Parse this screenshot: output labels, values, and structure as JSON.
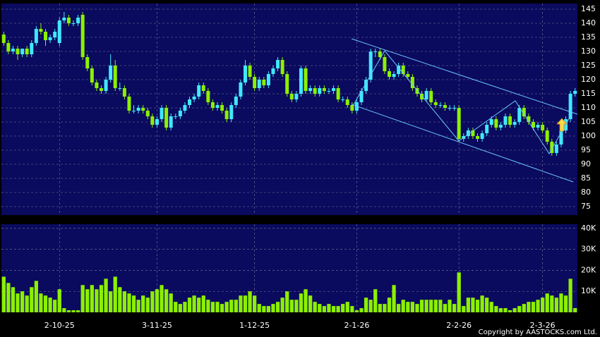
{
  "chart_data": [
    {
      "type": "candlestick",
      "up_color": "#40e8ff",
      "down_color": "#8cf000",
      "ylim": [
        72,
        147
      ],
      "yticks": [
        75,
        80,
        85,
        90,
        95,
        100,
        105,
        110,
        115,
        120,
        125,
        130,
        135,
        140,
        145
      ],
      "grid": true,
      "ohlc": [
        [
          136,
          137,
          132,
          133
        ],
        [
          133,
          134,
          129,
          130
        ],
        [
          130,
          132,
          129,
          131
        ],
        [
          131,
          132,
          127,
          129
        ],
        [
          129,
          131,
          128,
          131
        ],
        [
          131,
          132,
          128,
          129
        ],
        [
          129,
          134,
          128,
          133
        ],
        [
          133,
          139,
          132,
          138
        ],
        [
          138,
          140,
          136,
          137
        ],
        [
          137,
          138,
          132,
          134
        ],
        [
          134,
          136,
          133,
          135
        ],
        [
          135,
          138,
          134,
          137
        ],
        [
          133,
          142,
          132,
          141
        ],
        [
          141,
          144,
          140,
          142
        ],
        [
          142,
          143,
          139,
          140
        ],
        [
          140,
          141,
          139,
          140
        ],
        [
          140,
          143,
          139,
          142
        ],
        [
          143,
          144,
          127,
          128
        ],
        [
          128,
          129,
          123,
          124
        ],
        [
          124,
          125,
          118,
          119
        ],
        [
          119,
          120,
          116,
          117
        ],
        [
          117,
          118,
          115,
          116
        ],
        [
          116,
          121,
          115,
          120
        ],
        [
          120,
          129,
          119,
          125
        ],
        [
          125,
          127,
          116,
          117
        ],
        [
          117,
          119,
          116,
          117
        ],
        [
          117,
          118,
          113,
          114
        ],
        [
          114,
          115,
          108,
          109
        ],
        [
          109,
          111,
          108,
          109
        ],
        [
          109,
          111,
          108,
          110
        ],
        [
          110,
          111,
          108,
          109
        ],
        [
          109,
          110,
          106,
          107
        ],
        [
          107,
          108,
          103,
          104
        ],
        [
          104,
          107,
          103,
          106
        ],
        [
          106,
          111,
          105,
          110
        ],
        [
          110,
          111,
          102,
          103
        ],
        [
          103,
          108,
          102,
          107
        ],
        [
          107,
          108,
          106,
          107
        ],
        [
          107,
          110,
          106,
          109
        ],
        [
          109,
          112,
          108,
          111
        ],
        [
          111,
          114,
          110,
          113
        ],
        [
          113,
          115,
          112,
          114
        ],
        [
          114,
          119,
          113,
          118
        ],
        [
          118,
          119,
          115,
          116
        ],
        [
          116,
          117,
          111,
          112
        ],
        [
          112,
          113,
          109,
          110
        ],
        [
          110,
          112,
          109,
          111
        ],
        [
          111,
          112,
          108,
          109
        ],
        [
          109,
          110,
          105,
          106
        ],
        [
          106,
          112,
          105,
          111
        ],
        [
          111,
          115,
          110,
          114
        ],
        [
          114,
          120,
          113,
          119
        ],
        [
          119,
          127,
          118,
          125
        ],
        [
          125,
          126,
          120,
          121
        ],
        [
          121,
          122,
          116,
          117
        ],
        [
          117,
          121,
          116,
          120
        ],
        [
          120,
          121,
          117,
          118
        ],
        [
          118,
          123,
          117,
          122
        ],
        [
          122,
          125,
          121,
          124
        ],
        [
          124,
          128,
          123,
          127
        ],
        [
          127,
          128,
          121,
          122
        ],
        [
          122,
          123,
          114,
          115
        ],
        [
          115,
          116,
          112,
          113
        ],
        [
          113,
          116,
          112,
          115
        ],
        [
          115,
          125,
          114,
          124
        ],
        [
          124,
          125,
          115,
          116
        ],
        [
          116,
          118,
          115,
          117
        ],
        [
          117,
          118,
          114,
          115
        ],
        [
          115,
          118,
          114,
          117
        ],
        [
          117,
          118,
          115,
          116
        ],
        [
          116,
          117,
          115,
          116
        ],
        [
          116,
          118,
          115,
          117
        ],
        [
          117,
          118,
          112,
          113
        ],
        [
          113,
          114,
          112,
          113
        ],
        [
          113,
          114,
          110,
          111
        ],
        [
          111,
          112,
          108,
          109
        ],
        [
          109,
          113,
          108,
          112
        ],
        [
          112,
          117,
          111,
          116
        ],
        [
          116,
          121,
          115,
          120
        ],
        [
          120,
          131,
          119,
          130
        ],
        [
          130,
          131,
          128,
          130
        ],
        [
          130,
          131,
          127,
          128
        ],
        [
          128,
          129,
          122,
          123
        ],
        [
          123,
          124,
          120,
          121
        ],
        [
          121,
          123,
          120,
          122
        ],
        [
          122,
          126,
          121,
          125
        ],
        [
          125,
          126,
          121,
          122
        ],
        [
          122,
          123,
          120,
          121
        ],
        [
          121,
          122,
          116,
          117
        ],
        [
          117,
          118,
          114,
          115
        ],
        [
          115,
          116,
          112,
          113
        ],
        [
          113,
          117,
          112,
          116
        ],
        [
          116,
          117,
          111,
          112
        ],
        [
          112,
          113,
          110,
          111
        ],
        [
          111,
          112,
          110,
          111
        ],
        [
          111,
          112,
          109,
          110
        ],
        [
          110,
          111,
          109,
          110
        ],
        [
          110,
          111,
          109,
          110
        ],
        [
          110,
          111,
          98,
          99
        ],
        [
          99,
          101,
          98,
          100
        ],
        [
          100,
          103,
          99,
          102
        ],
        [
          102,
          103,
          99,
          100
        ],
        [
          100,
          101,
          98,
          99
        ],
        [
          99,
          102,
          98,
          101
        ],
        [
          101,
          105,
          100,
          104
        ],
        [
          104,
          107,
          103,
          106
        ],
        [
          106,
          107,
          102,
          103
        ],
        [
          103,
          105,
          102,
          104
        ],
        [
          104,
          108,
          103,
          107
        ],
        [
          107,
          108,
          103,
          104
        ],
        [
          104,
          106,
          103,
          105
        ],
        [
          105,
          111,
          104,
          110
        ],
        [
          110,
          111,
          106,
          107
        ],
        [
          107,
          108,
          104,
          105
        ],
        [
          105,
          106,
          102,
          103
        ],
        [
          103,
          105,
          102,
          104
        ],
        [
          104,
          105,
          101,
          102
        ],
        [
          102,
          103,
          97,
          98
        ],
        [
          98,
          99,
          93,
          94
        ],
        [
          94,
          98,
          93,
          97
        ],
        [
          97,
          103,
          96,
          102
        ],
        [
          102,
          107,
          101,
          106
        ],
        [
          106,
          116,
          105,
          115
        ],
        [
          115,
          117,
          114,
          116
        ]
      ]
    },
    {
      "type": "bar",
      "color": "#8cf000",
      "ylim": [
        0,
        42000
      ],
      "yticks": [
        {
          "value": 10000,
          "label": "10K"
        },
        {
          "value": 20000,
          "label": "20K"
        },
        {
          "value": 30000,
          "label": "30K"
        },
        {
          "value": 40000,
          "label": "40K"
        }
      ],
      "grid": true,
      "categories": [
        null,
        null,
        null,
        null,
        null,
        null,
        null,
        null,
        null,
        null,
        null,
        null,
        "2-10-25",
        null,
        null,
        null,
        null,
        null,
        null,
        null,
        null,
        null,
        null,
        null,
        null,
        null,
        null,
        null,
        null,
        null,
        null,
        null,
        null,
        "3-11-25",
        null,
        null,
        null,
        null,
        null,
        null,
        null,
        null,
        null,
        null,
        null,
        null,
        null,
        null,
        null,
        null,
        null,
        null,
        null,
        null,
        "1-12-25",
        null,
        null,
        null,
        null,
        null,
        null,
        null,
        null,
        null,
        null,
        null,
        null,
        null,
        null,
        null,
        null,
        null,
        null,
        null,
        null,
        null,
        "2-1-26",
        null,
        null,
        null,
        null,
        null,
        null,
        null,
        null,
        null,
        null,
        null,
        null,
        null,
        null,
        null,
        null,
        null,
        null,
        null,
        null,
        null,
        "2-2-26",
        null,
        null,
        null,
        null,
        null,
        null,
        null,
        null,
        null,
        null,
        null,
        null,
        null,
        null,
        null,
        null,
        null,
        "2-3-26",
        null,
        null,
        null,
        null,
        null,
        null,
        null
      ],
      "values": [
        17000,
        14000,
        12000,
        9000,
        10000,
        8000,
        12000,
        15000,
        9000,
        8000,
        7000,
        6000,
        11000,
        2000,
        1000,
        1000,
        1000,
        13000,
        11000,
        13000,
        11000,
        13000,
        16000,
        10000,
        17000,
        12000,
        10000,
        9000,
        8000,
        6000,
        8000,
        7000,
        10000,
        11000,
        13000,
        11000,
        9000,
        5000,
        4000,
        5000,
        7000,
        8000,
        7000,
        8000,
        6000,
        5000,
        5000,
        4000,
        5000,
        6000,
        6000,
        8000,
        8000,
        10000,
        8000,
        4000,
        3000,
        3000,
        4000,
        5000,
        7000,
        10000,
        6000,
        6000,
        9000,
        11000,
        8000,
        5000,
        4000,
        3000,
        4000,
        3000,
        3000,
        4000,
        5000,
        3000,
        1000,
        2000,
        7000,
        6000,
        11000,
        4000,
        4000,
        7000,
        13000,
        4000,
        6000,
        5000,
        5000,
        4000,
        6000,
        6000,
        6000,
        6000,
        6000,
        4000,
        6000,
        4000,
        19000,
        3000,
        7000,
        7000,
        6000,
        8000,
        7000,
        5000,
        3000,
        2000,
        2000,
        1000,
        2000,
        3000,
        4000,
        5000,
        5000,
        6000,
        7000,
        9000,
        8000,
        7000,
        9000,
        8000,
        16000,
        2000
      ]
    }
  ],
  "footer": "Copyright by AASTOCKS.com Ltd."
}
